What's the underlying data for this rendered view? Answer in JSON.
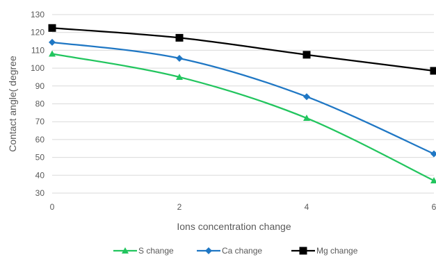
{
  "chart_data": {
    "type": "line",
    "smooth": true,
    "title": "",
    "xlabel": "Ions concentration change",
    "ylabel": "Contact angle( degree",
    "x": [
      0,
      2,
      4,
      6
    ],
    "x_ticks": [
      "0",
      "2",
      "4",
      "6"
    ],
    "xlim": [
      0,
      6
    ],
    "ylim": [
      30,
      130
    ],
    "y_ticks": [
      "30",
      "40",
      "50",
      "60",
      "70",
      "80",
      "90",
      "100",
      "110",
      "120",
      "130"
    ],
    "grid": "horizontal",
    "legend_position": "bottom",
    "series": [
      {
        "name": "S change",
        "values": [
          108,
          95,
          72,
          37
        ],
        "color": "#22c55e",
        "marker": "triangle"
      },
      {
        "name": "Ca change",
        "values": [
          114.5,
          105.5,
          84,
          52
        ],
        "color": "#1f77c4",
        "marker": "diamond"
      },
      {
        "name": "Mg change",
        "values": [
          122.5,
          117,
          107.5,
          98.5
        ],
        "color": "#000000",
        "marker": "square"
      }
    ]
  }
}
